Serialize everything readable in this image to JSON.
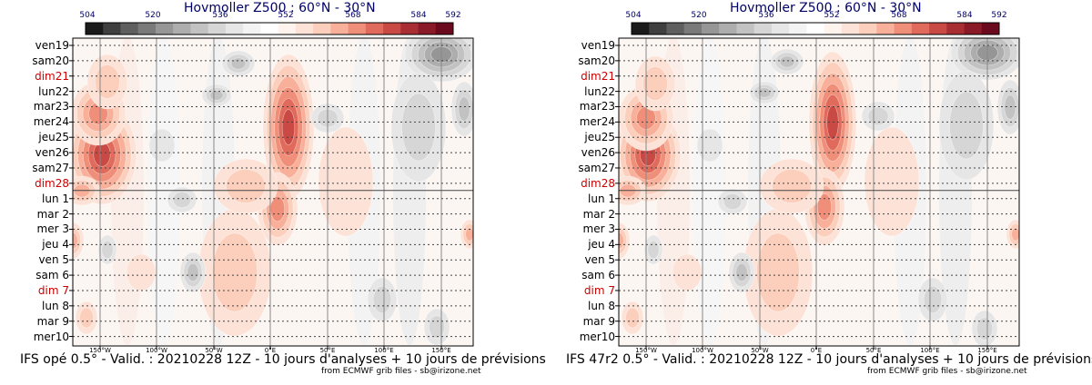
{
  "chart_data": [
    {
      "type": "heatmap",
      "title": "Hovmoller Z500 : 60°N - 30°N",
      "caption": "IFS opé 0.5° - Valid. : 20210228 12Z - 10 jours d'analyses + 10 jours de prévisions",
      "credit": "from ECMWF grib files - sb@irizone.net",
      "colorbar_ticks": [
        "504",
        "520",
        "536",
        "552",
        "568",
        "584",
        "592"
      ],
      "x_tick_labels": [
        "150°W",
        "100°W",
        "50°W",
        "0°E",
        "50°E",
        "100°E",
        "150°E"
      ],
      "y_labels": [
        {
          "text": "ven19",
          "weekend": false
        },
        {
          "text": "sam20",
          "weekend": false
        },
        {
          "text": "dim21",
          "weekend": true
        },
        {
          "text": "lun22",
          "weekend": false
        },
        {
          "text": "mar23",
          "weekend": false
        },
        {
          "text": "mer24",
          "weekend": false
        },
        {
          "text": "jeu25",
          "weekend": false
        },
        {
          "text": "ven26",
          "weekend": false
        },
        {
          "text": "sam27",
          "weekend": false
        },
        {
          "text": "dim28",
          "weekend": true
        },
        {
          "text": "lun 1",
          "weekend": false
        },
        {
          "text": "mar 2",
          "weekend": false
        },
        {
          "text": "mer 3",
          "weekend": false
        },
        {
          "text": "jeu 4",
          "weekend": false
        },
        {
          "text": "ven 5",
          "weekend": false
        },
        {
          "text": "sam 6",
          "weekend": false
        },
        {
          "text": "dim 7",
          "weekend": true
        },
        {
          "text": "lun 8",
          "weekend": false
        },
        {
          "text": "mar 9",
          "weekend": false
        },
        {
          "text": "mer10",
          "weekend": false
        }
      ]
    },
    {
      "type": "heatmap",
      "title": "Hovmoller Z500 : 60°N - 30°N",
      "caption": "IFS 47r2 0.5° - Valid. : 20210228 12Z - 10 jours d'analyses + 10 jours de prévisions",
      "credit": "from ECMWF grib files - sb@irizone.net",
      "colorbar_ticks": [
        "504",
        "520",
        "536",
        "552",
        "568",
        "584",
        "592"
      ],
      "x_tick_labels": [
        "150°W",
        "100°W",
        "50°W",
        "0°E",
        "50°E",
        "100°E",
        "150°E"
      ],
      "y_labels": [
        {
          "text": "ven19",
          "weekend": false
        },
        {
          "text": "sam20",
          "weekend": false
        },
        {
          "text": "dim21",
          "weekend": true
        },
        {
          "text": "lun22",
          "weekend": false
        },
        {
          "text": "mar23",
          "weekend": false
        },
        {
          "text": "mer24",
          "weekend": false
        },
        {
          "text": "jeu25",
          "weekend": false
        },
        {
          "text": "ven26",
          "weekend": false
        },
        {
          "text": "sam27",
          "weekend": false
        },
        {
          "text": "dim28",
          "weekend": true
        },
        {
          "text": "lun 1",
          "weekend": false
        },
        {
          "text": "mar 2",
          "weekend": false
        },
        {
          "text": "mer 3",
          "weekend": false
        },
        {
          "text": "jeu 4",
          "weekend": false
        },
        {
          "text": "ven 5",
          "weekend": false
        },
        {
          "text": "sam 6",
          "weekend": false
        },
        {
          "text": "dim 7",
          "weekend": true
        },
        {
          "text": "lun 8",
          "weekend": false
        },
        {
          "text": "mar 9",
          "weekend": false
        },
        {
          "text": "mer10",
          "weekend": false
        }
      ]
    }
  ],
  "colors": {
    "colorbar": [
      "#1a1a1a",
      "#3f3f3f",
      "#5f5f5f",
      "#7a7a7a",
      "#969696",
      "#adadad",
      "#c2c2c2",
      "#d6d6d6",
      "#e6e6e6",
      "#f3f3f3",
      "#ffffff",
      "#fff3ee",
      "#fde3d7",
      "#fccfbc",
      "#f8b09a",
      "#f08f79",
      "#e06b5c",
      "#c94a45",
      "#a82e34",
      "#8a1a28",
      "#6b0a1e"
    ],
    "title": "#000066",
    "weekend_label": "#cc0000",
    "weekday_label": "#000000"
  }
}
